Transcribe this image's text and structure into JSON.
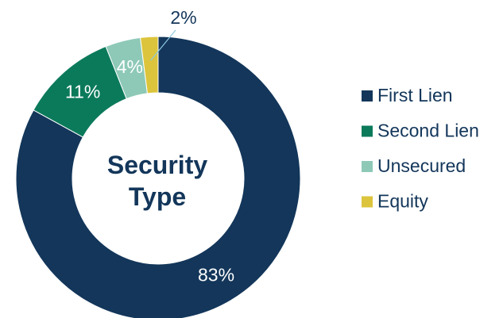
{
  "chart_data": {
    "type": "donut",
    "title": "Security Type",
    "categories": [
      "First Lien",
      "Second Lien",
      "Unsecured",
      "Equity"
    ],
    "values": [
      83,
      11,
      4,
      2
    ],
    "value_labels": [
      "83%",
      "11%",
      "4%",
      "2%"
    ],
    "colors": [
      "#13365a",
      "#0b7a5b",
      "#8ec9b8",
      "#dcc43c"
    ],
    "legend": "right"
  }
}
